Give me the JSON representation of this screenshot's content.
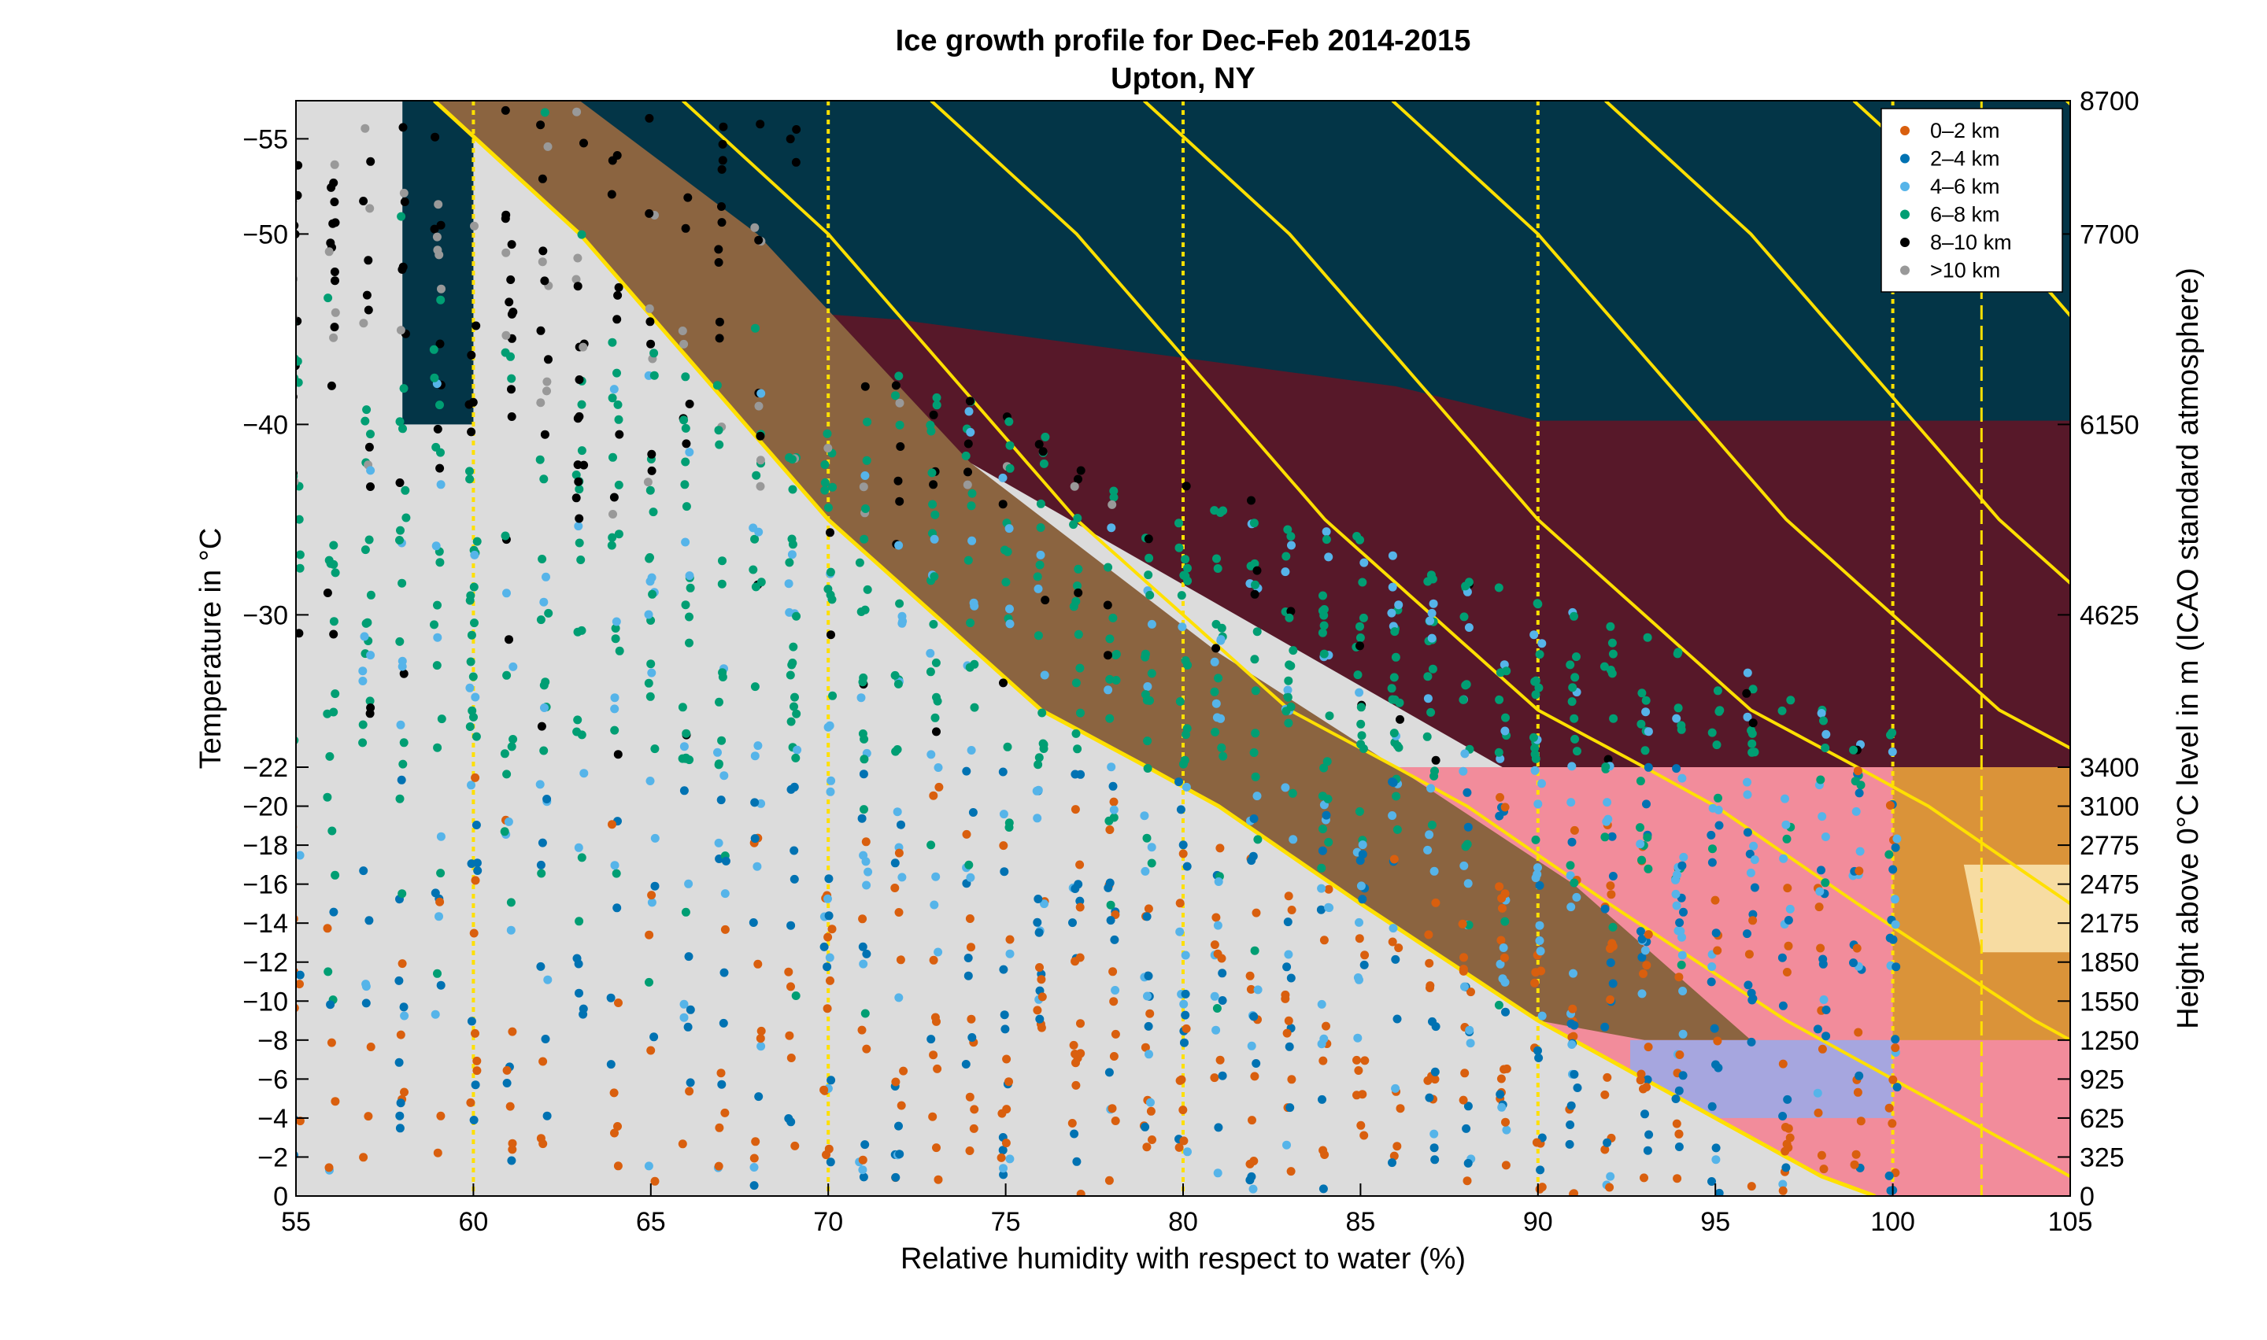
{
  "chart_data": {
    "type": "scatter",
    "title": "Ice growth profile for Dec-Feb 2014-2015",
    "subtitle": "Upton, NY",
    "xlabel": "Relative humidity with respect to water (%)",
    "ylabel": "Temperature in °C",
    "y2label": "Height above 0°C level in m (ICAO standard atmosphere)",
    "xlim": [
      55,
      105
    ],
    "ylim": [
      0,
      -57
    ],
    "x_ticks": [
      55,
      60,
      65,
      70,
      75,
      80,
      85,
      90,
      95,
      100,
      105
    ],
    "y_ticks": [
      0,
      -2,
      -4,
      -6,
      -8,
      -10,
      -12,
      -14,
      -16,
      -18,
      -20,
      -22,
      -30,
      -40,
      -50,
      -55
    ],
    "y_scale_breakpoint": -22,
    "y2_ticks": [
      {
        "temp": 0,
        "label": "0"
      },
      {
        "temp": -2,
        "label": "325"
      },
      {
        "temp": -4,
        "label": "625"
      },
      {
        "temp": -6,
        "label": "925"
      },
      {
        "temp": -8,
        "label": "1250"
      },
      {
        "temp": -10,
        "label": "1550"
      },
      {
        "temp": -12,
        "label": "1850"
      },
      {
        "temp": -14,
        "label": "2175"
      },
      {
        "temp": -16,
        "label": "2475"
      },
      {
        "temp": -18,
        "label": "2775"
      },
      {
        "temp": -20,
        "label": "3100"
      },
      {
        "temp": -22,
        "label": "3400"
      },
      {
        "temp": -30,
        "label": "4625"
      },
      {
        "temp": -40,
        "label": "6150"
      },
      {
        "temp": -50,
        "label": "7700"
      },
      {
        "temp": -57,
        "label": "8700"
      }
    ],
    "series": [
      {
        "name": "0–2 km",
        "color": "#d95f0e"
      },
      {
        "name": "2–4 km",
        "color": "#0072b2"
      },
      {
        "name": "4–6 km",
        "color": "#56b4e9"
      },
      {
        "name": "6–8 km",
        "color": "#009e73"
      },
      {
        "name": "8–10 km",
        "color": "#000000"
      },
      {
        "name": ">10 km",
        "color": "#999999"
      }
    ],
    "x_columns": [
      55,
      56,
      57,
      58,
      59,
      60,
      61,
      62,
      63,
      64,
      65,
      66,
      67,
      68,
      69,
      70,
      71,
      72,
      73,
      74,
      75,
      76,
      77,
      78,
      79,
      80,
      81,
      82,
      83,
      84,
      85,
      86,
      87,
      88,
      89,
      90,
      91,
      92,
      93,
      94,
      95,
      96,
      97,
      98,
      99,
      100
    ],
    "saturation_curve": [
      [
        58.9,
        -57
      ],
      [
        63,
        -50
      ],
      [
        70,
        -35
      ],
      [
        76,
        -25
      ],
      [
        81,
        -20
      ],
      [
        85,
        -15
      ],
      [
        90,
        -9
      ],
      [
        95,
        -4
      ],
      [
        98,
        -1
      ],
      [
        99.5,
        0
      ]
    ],
    "ice_saturation_lines_offset_rh": [
      0,
      7,
      14,
      20,
      27,
      33,
      40,
      46
    ],
    "vertical_reference_lines_rh": [
      60,
      70,
      80,
      90,
      100,
      102.5
    ],
    "regions": [
      {
        "name": "columns-needles",
        "color": "#033547"
      },
      {
        "name": "plates-columns",
        "color": "#571829"
      },
      {
        "name": "plates",
        "color": "#f28c9b"
      },
      {
        "name": "dendrites",
        "color": "#da9339"
      },
      {
        "name": "dendrite-core",
        "color": "#f7dca2"
      },
      {
        "name": "columns",
        "color": "#a6a6df"
      },
      {
        "name": "subsaturated",
        "color": "#dcdcdc"
      },
      {
        "name": "transition-band",
        "color": "#8b6440"
      }
    ],
    "reference_line_color": "#ffe000",
    "legend_position": "top-right",
    "grid": false
  }
}
